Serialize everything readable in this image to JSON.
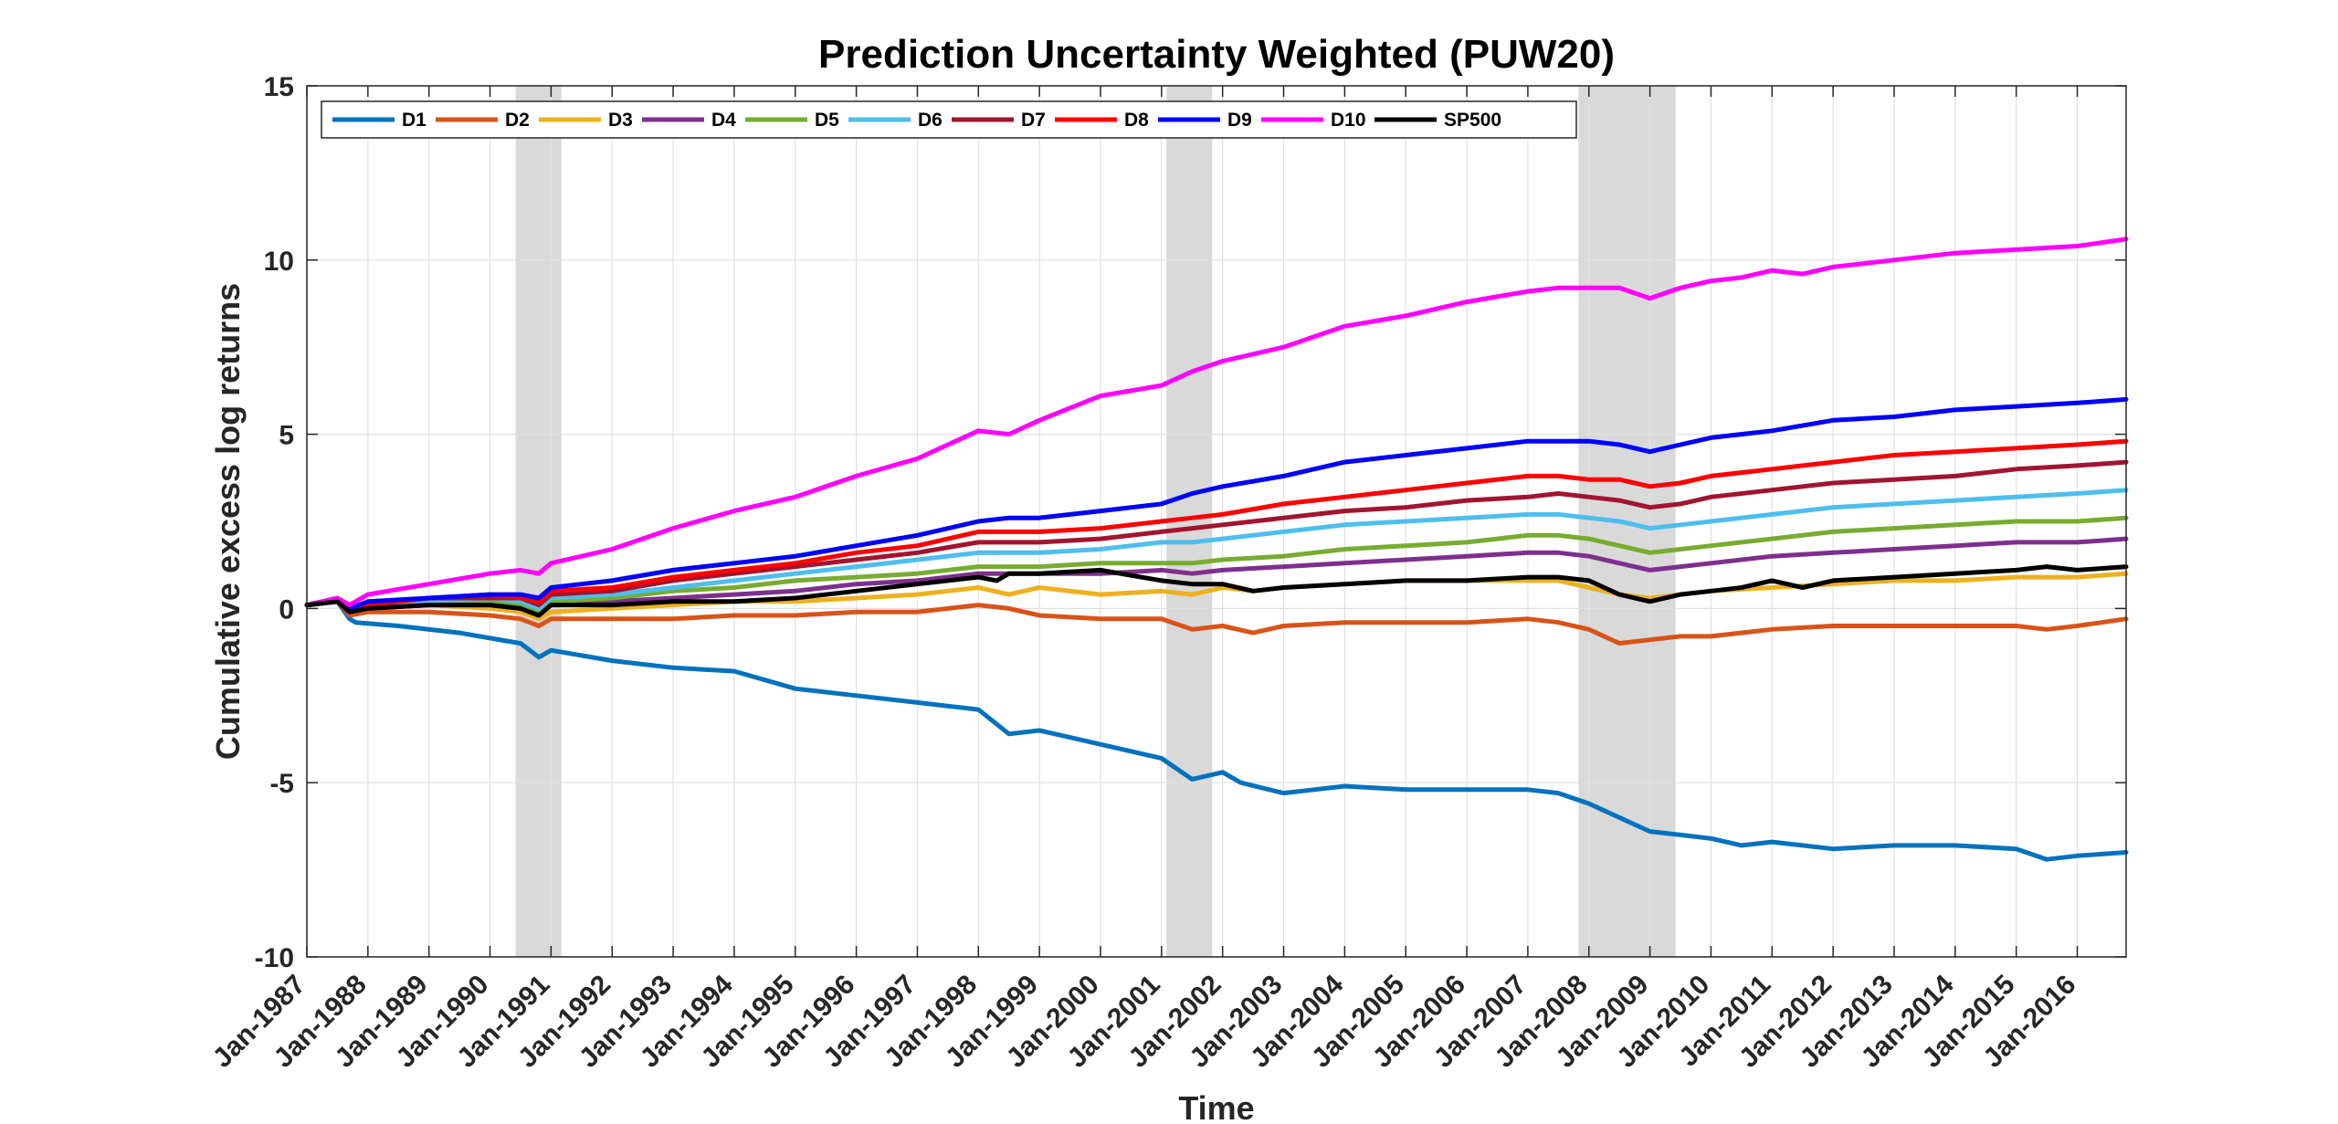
{
  "chart_data": {
    "type": "line",
    "title": "Prediction Uncertainty Weighted (PUW20)",
    "xlabel": "Time",
    "ylabel": "Cumulative excess log returns",
    "xlim": [
      1987.0,
      2016.8
    ],
    "ylim": [
      -10,
      15
    ],
    "yticks": [
      -10,
      -5,
      0,
      5,
      10,
      15
    ],
    "ytick_labels": [
      "-10",
      "-5",
      "0",
      "5",
      "10",
      "15"
    ],
    "xtick_labels": [
      "Jan-1987",
      "Jan-1988",
      "Jan-1989",
      "Jan-1990",
      "Jan-1991",
      "Jan-1992",
      "Jan-1993",
      "Jan-1994",
      "Jan-1995",
      "Jan-1996",
      "Jan-1997",
      "Jan-1998",
      "Jan-1999",
      "Jan-2000",
      "Jan-2001",
      "Jan-2002",
      "Jan-2003",
      "Jan-2004",
      "Jan-2005",
      "Jan-2006",
      "Jan-2007",
      "Jan-2008",
      "Jan-2009",
      "Jan-2010",
      "Jan-2011",
      "Jan-2012",
      "Jan-2013",
      "Jan-2014",
      "Jan-2015",
      "Jan-2016"
    ],
    "grid": true,
    "legend_position": "top-left",
    "recession_bands": [
      [
        1990.42,
        1991.17
      ],
      [
        2001.08,
        2001.83
      ],
      [
        2007.83,
        2009.42
      ]
    ],
    "series": [
      {
        "name": "D1",
        "color": "#0072BD",
        "x": [
          1987.0,
          1987.5,
          1987.7,
          1987.8,
          1988.5,
          1989.5,
          1990.5,
          1990.8,
          1991.0,
          1992.0,
          1993.0,
          1994.0,
          1995.0,
          1996.0,
          1997.0,
          1998.0,
          1998.5,
          1999.0,
          2000.0,
          2001.0,
          2001.5,
          2002.0,
          2002.3,
          2003.0,
          2003.5,
          2004.0,
          2005.0,
          2006.0,
          2007.0,
          2007.5,
          2008.0,
          2008.5,
          2009.0,
          2009.5,
          2010.0,
          2010.5,
          2011.0,
          2011.5,
          2012.0,
          2013.0,
          2014.0,
          2015.0,
          2015.5,
          2016.0,
          2016.8
        ],
        "y": [
          0.1,
          0.2,
          -0.3,
          -0.4,
          -0.5,
          -0.7,
          -1.0,
          -1.4,
          -1.2,
          -1.5,
          -1.7,
          -1.8,
          -2.3,
          -2.5,
          -2.7,
          -2.9,
          -3.6,
          -3.5,
          -3.9,
          -4.3,
          -4.9,
          -4.7,
          -5.0,
          -5.3,
          -5.2,
          -5.1,
          -5.2,
          -5.2,
          -5.2,
          -5.3,
          -5.6,
          -6.0,
          -6.4,
          -6.5,
          -6.6,
          -6.8,
          -6.7,
          -6.8,
          -6.9,
          -6.8,
          -6.8,
          -6.9,
          -7.2,
          -7.1,
          -7.0
        ]
      },
      {
        "name": "D2",
        "color": "#D95319",
        "x": [
          1987.0,
          1987.5,
          1987.7,
          1988.0,
          1989.0,
          1990.0,
          1990.5,
          1990.8,
          1991.0,
          1992.0,
          1993.0,
          1994.0,
          1995.0,
          1996.0,
          1997.0,
          1998.0,
          1998.5,
          1999.0,
          2000.0,
          2001.0,
          2001.5,
          2002.0,
          2002.5,
          2003.0,
          2004.0,
          2005.0,
          2006.0,
          2007.0,
          2007.5,
          2008.0,
          2008.5,
          2009.0,
          2009.5,
          2010.0,
          2011.0,
          2012.0,
          2013.0,
          2014.0,
          2015.0,
          2015.5,
          2016.0,
          2016.8
        ],
        "y": [
          0.1,
          0.2,
          -0.2,
          -0.1,
          -0.1,
          -0.2,
          -0.3,
          -0.5,
          -0.3,
          -0.3,
          -0.3,
          -0.2,
          -0.2,
          -0.1,
          -0.1,
          0.1,
          0.0,
          -0.2,
          -0.3,
          -0.3,
          -0.6,
          -0.5,
          -0.7,
          -0.5,
          -0.4,
          -0.4,
          -0.4,
          -0.3,
          -0.4,
          -0.6,
          -1.0,
          -0.9,
          -0.8,
          -0.8,
          -0.6,
          -0.5,
          -0.5,
          -0.5,
          -0.5,
          -0.6,
          -0.5,
          -0.3
        ]
      },
      {
        "name": "D3",
        "color": "#EDB120",
        "x": [
          1987.0,
          1987.5,
          1987.7,
          1988.0,
          1989.0,
          1990.0,
          1990.5,
          1990.8,
          1991.0,
          1992.0,
          1993.0,
          1994.0,
          1995.0,
          1996.0,
          1997.0,
          1998.0,
          1998.5,
          1999.0,
          2000.0,
          2001.0,
          2001.5,
          2002.0,
          2002.5,
          2003.0,
          2004.0,
          2005.0,
          2006.0,
          2007.0,
          2007.5,
          2008.0,
          2008.5,
          2009.0,
          2009.5,
          2010.0,
          2011.0,
          2012.0,
          2013.0,
          2014.0,
          2015.0,
          2016.0,
          2016.8
        ],
        "y": [
          0.1,
          0.2,
          -0.1,
          0.0,
          0.1,
          0.0,
          -0.1,
          -0.3,
          -0.1,
          0.0,
          0.1,
          0.2,
          0.2,
          0.3,
          0.4,
          0.6,
          0.4,
          0.6,
          0.4,
          0.5,
          0.4,
          0.6,
          0.5,
          0.6,
          0.7,
          0.8,
          0.8,
          0.8,
          0.8,
          0.6,
          0.4,
          0.3,
          0.4,
          0.5,
          0.6,
          0.7,
          0.8,
          0.8,
          0.9,
          0.9,
          1.0
        ]
      },
      {
        "name": "D4",
        "color": "#7E2F8E",
        "x": [
          1987.0,
          1987.5,
          1987.7,
          1988.0,
          1989.0,
          1990.0,
          1990.5,
          1990.8,
          1991.0,
          1992.0,
          1993.0,
          1994.0,
          1995.0,
          1996.0,
          1997.0,
          1998.0,
          1999.0,
          2000.0,
          2001.0,
          2001.5,
          2002.0,
          2003.0,
          2004.0,
          2005.0,
          2006.0,
          2007.0,
          2007.5,
          2008.0,
          2008.5,
          2009.0,
          2009.5,
          2010.0,
          2011.0,
          2012.0,
          2013.0,
          2014.0,
          2015.0,
          2016.0,
          2016.8
        ],
        "y": [
          0.1,
          0.2,
          -0.1,
          0.0,
          0.1,
          0.1,
          0.0,
          -0.2,
          0.1,
          0.2,
          0.3,
          0.4,
          0.5,
          0.7,
          0.8,
          1.0,
          1.0,
          1.0,
          1.1,
          1.0,
          1.1,
          1.2,
          1.3,
          1.4,
          1.5,
          1.6,
          1.6,
          1.5,
          1.3,
          1.1,
          1.2,
          1.3,
          1.5,
          1.6,
          1.7,
          1.8,
          1.9,
          1.9,
          2.0
        ]
      },
      {
        "name": "D5",
        "color": "#77AC30",
        "x": [
          1987.0,
          1987.5,
          1987.7,
          1988.0,
          1989.0,
          1990.0,
          1990.5,
          1990.8,
          1991.0,
          1992.0,
          1993.0,
          1994.0,
          1995.0,
          1996.0,
          1997.0,
          1998.0,
          1999.0,
          2000.0,
          2001.0,
          2001.5,
          2002.0,
          2003.0,
          2004.0,
          2005.0,
          2006.0,
          2007.0,
          2007.5,
          2008.0,
          2008.5,
          2009.0,
          2009.5,
          2010.0,
          2011.0,
          2012.0,
          2013.0,
          2014.0,
          2015.0,
          2016.0,
          2016.8
        ],
        "y": [
          0.1,
          0.2,
          -0.1,
          0.0,
          0.2,
          0.2,
          0.1,
          -0.1,
          0.2,
          0.3,
          0.5,
          0.6,
          0.8,
          0.9,
          1.0,
          1.2,
          1.2,
          1.3,
          1.3,
          1.3,
          1.4,
          1.5,
          1.7,
          1.8,
          1.9,
          2.1,
          2.1,
          2.0,
          1.8,
          1.6,
          1.7,
          1.8,
          2.0,
          2.2,
          2.3,
          2.4,
          2.5,
          2.5,
          2.6
        ]
      },
      {
        "name": "D6",
        "color": "#4DBEEE",
        "x": [
          1987.0,
          1987.5,
          1987.7,
          1988.0,
          1989.0,
          1990.0,
          1990.5,
          1990.8,
          1991.0,
          1992.0,
          1993.0,
          1994.0,
          1995.0,
          1996.0,
          1997.0,
          1998.0,
          1999.0,
          2000.0,
          2001.0,
          2001.5,
          2002.0,
          2003.0,
          2004.0,
          2005.0,
          2006.0,
          2007.0,
          2007.5,
          2008.0,
          2008.5,
          2009.0,
          2009.5,
          2010.0,
          2011.0,
          2012.0,
          2013.0,
          2014.0,
          2015.0,
          2016.0,
          2016.8
        ],
        "y": [
          0.1,
          0.2,
          0.0,
          0.1,
          0.2,
          0.3,
          0.2,
          0.0,
          0.3,
          0.4,
          0.6,
          0.8,
          1.0,
          1.2,
          1.4,
          1.6,
          1.6,
          1.7,
          1.9,
          1.9,
          2.0,
          2.2,
          2.4,
          2.5,
          2.6,
          2.7,
          2.7,
          2.6,
          2.5,
          2.3,
          2.4,
          2.5,
          2.7,
          2.9,
          3.0,
          3.1,
          3.2,
          3.3,
          3.4
        ]
      },
      {
        "name": "D7",
        "color": "#A2142F",
        "x": [
          1987.0,
          1987.5,
          1987.7,
          1988.0,
          1989.0,
          1990.0,
          1990.5,
          1990.8,
          1991.0,
          1992.0,
          1993.0,
          1994.0,
          1995.0,
          1996.0,
          1997.0,
          1998.0,
          1999.0,
          2000.0,
          2001.0,
          2001.5,
          2002.0,
          2003.0,
          2004.0,
          2005.0,
          2006.0,
          2007.0,
          2007.5,
          2008.0,
          2008.5,
          2009.0,
          2009.5,
          2010.0,
          2011.0,
          2012.0,
          2013.0,
          2014.0,
          2015.0,
          2016.0,
          2016.8
        ],
        "y": [
          0.1,
          0.2,
          0.0,
          0.1,
          0.3,
          0.3,
          0.3,
          0.1,
          0.4,
          0.5,
          0.8,
          1.0,
          1.2,
          1.4,
          1.6,
          1.9,
          1.9,
          2.0,
          2.2,
          2.3,
          2.4,
          2.6,
          2.8,
          2.9,
          3.1,
          3.2,
          3.3,
          3.2,
          3.1,
          2.9,
          3.0,
          3.2,
          3.4,
          3.6,
          3.7,
          3.8,
          4.0,
          4.1,
          4.2
        ]
      },
      {
        "name": "D8",
        "color": "#FF0000",
        "x": [
          1987.0,
          1987.5,
          1987.7,
          1988.0,
          1989.0,
          1990.0,
          1990.5,
          1990.8,
          1991.0,
          1992.0,
          1993.0,
          1994.0,
          1995.0,
          1996.0,
          1997.0,
          1998.0,
          1999.0,
          2000.0,
          2001.0,
          2001.5,
          2002.0,
          2003.0,
          2004.0,
          2005.0,
          2006.0,
          2007.0,
          2007.5,
          2008.0,
          2008.5,
          2009.0,
          2009.5,
          2010.0,
          2011.0,
          2012.0,
          2013.0,
          2014.0,
          2015.0,
          2016.0,
          2016.8
        ],
        "y": [
          0.1,
          0.2,
          0.0,
          0.1,
          0.3,
          0.4,
          0.3,
          0.2,
          0.5,
          0.6,
          0.9,
          1.1,
          1.3,
          1.6,
          1.8,
          2.2,
          2.2,
          2.3,
          2.5,
          2.6,
          2.7,
          3.0,
          3.2,
          3.4,
          3.6,
          3.8,
          3.8,
          3.7,
          3.7,
          3.5,
          3.6,
          3.8,
          4.0,
          4.2,
          4.4,
          4.5,
          4.6,
          4.7,
          4.8
        ]
      },
      {
        "name": "D9",
        "color": "#0000FF",
        "x": [
          1987.0,
          1987.5,
          1987.7,
          1988.0,
          1989.0,
          1990.0,
          1990.5,
          1990.8,
          1991.0,
          1992.0,
          1993.0,
          1994.0,
          1995.0,
          1996.0,
          1997.0,
          1998.0,
          1998.5,
          1999.0,
          2000.0,
          2001.0,
          2001.5,
          2002.0,
          2003.0,
          2004.0,
          2005.0,
          2006.0,
          2007.0,
          2007.5,
          2008.0,
          2008.5,
          2009.0,
          2009.5,
          2010.0,
          2011.0,
          2012.0,
          2013.0,
          2014.0,
          2015.0,
          2016.0,
          2016.8
        ],
        "y": [
          0.1,
          0.2,
          0.0,
          0.2,
          0.3,
          0.4,
          0.4,
          0.3,
          0.6,
          0.8,
          1.1,
          1.3,
          1.5,
          1.8,
          2.1,
          2.5,
          2.6,
          2.6,
          2.8,
          3.0,
          3.3,
          3.5,
          3.8,
          4.2,
          4.4,
          4.6,
          4.8,
          4.8,
          4.8,
          4.7,
          4.5,
          4.7,
          4.9,
          5.1,
          5.4,
          5.5,
          5.7,
          5.8,
          5.9,
          6.0
        ]
      },
      {
        "name": "D10",
        "color": "#FF00FF",
        "x": [
          1987.0,
          1987.5,
          1987.7,
          1988.0,
          1989.0,
          1990.0,
          1990.5,
          1990.8,
          1991.0,
          1992.0,
          1993.0,
          1994.0,
          1995.0,
          1996.0,
          1997.0,
          1998.0,
          1998.5,
          1999.0,
          2000.0,
          2001.0,
          2001.5,
          2002.0,
          2003.0,
          2004.0,
          2005.0,
          2006.0,
          2007.0,
          2007.5,
          2008.0,
          2008.5,
          2009.0,
          2009.5,
          2010.0,
          2010.5,
          2011.0,
          2011.5,
          2012.0,
          2013.0,
          2014.0,
          2015.0,
          2016.0,
          2016.8
        ],
        "y": [
          0.1,
          0.3,
          0.1,
          0.4,
          0.7,
          1.0,
          1.1,
          1.0,
          1.3,
          1.7,
          2.3,
          2.8,
          3.2,
          3.8,
          4.3,
          5.1,
          5.0,
          5.4,
          6.1,
          6.4,
          6.8,
          7.1,
          7.5,
          8.1,
          8.4,
          8.8,
          9.1,
          9.2,
          9.2,
          9.2,
          8.9,
          9.2,
          9.4,
          9.5,
          9.7,
          9.6,
          9.8,
          10.0,
          10.2,
          10.3,
          10.4,
          10.6
        ]
      },
      {
        "name": "SP500",
        "color": "#000000",
        "x": [
          1987.0,
          1987.5,
          1987.7,
          1988.0,
          1989.0,
          1990.0,
          1990.5,
          1990.8,
          1991.0,
          1992.0,
          1993.0,
          1994.0,
          1995.0,
          1996.0,
          1997.0,
          1998.0,
          1998.3,
          1998.5,
          1999.0,
          2000.0,
          2001.0,
          2001.5,
          2002.0,
          2002.5,
          2003.0,
          2004.0,
          2005.0,
          2006.0,
          2007.0,
          2007.5,
          2008.0,
          2008.5,
          2009.0,
          2009.5,
          2010.0,
          2010.5,
          2011.0,
          2011.5,
          2012.0,
          2013.0,
          2014.0,
          2015.0,
          2015.5,
          2016.0,
          2016.8
        ],
        "y": [
          0.1,
          0.2,
          -0.1,
          0.0,
          0.1,
          0.1,
          0.0,
          -0.2,
          0.1,
          0.1,
          0.2,
          0.2,
          0.3,
          0.5,
          0.7,
          0.9,
          0.8,
          1.0,
          1.0,
          1.1,
          0.8,
          0.7,
          0.7,
          0.5,
          0.6,
          0.7,
          0.8,
          0.8,
          0.9,
          0.9,
          0.8,
          0.4,
          0.2,
          0.4,
          0.5,
          0.6,
          0.8,
          0.6,
          0.8,
          0.9,
          1.0,
          1.1,
          1.2,
          1.1,
          1.2
        ]
      }
    ]
  }
}
